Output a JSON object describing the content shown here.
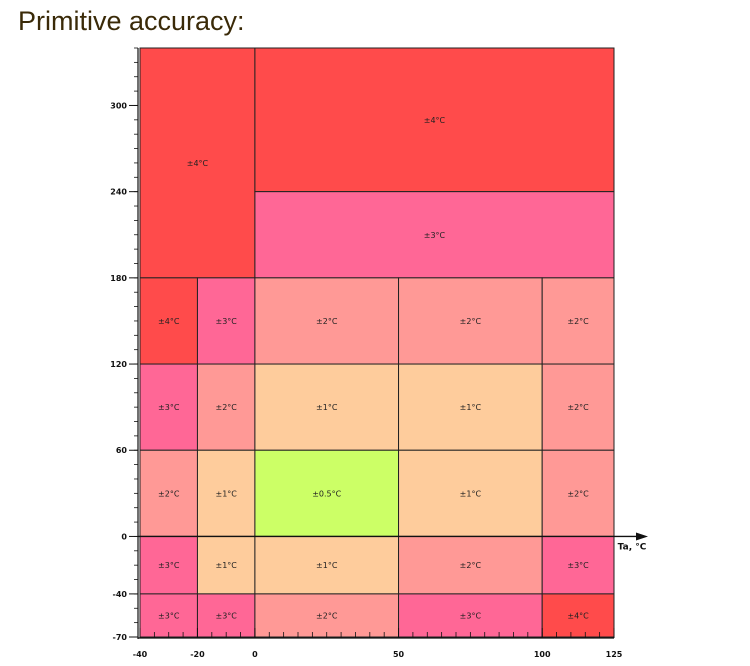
{
  "title": "Primitive accuracy:",
  "colors": {
    "±4°C": "#ff4b4b",
    "±3°C": "#ff6796",
    "±2°C": "#ff9996",
    "±1°C": "#fecc9c",
    "±0.5°C": "#ccff66"
  },
  "chart_data": {
    "type": "heatmap",
    "title": "Primitive accuracy:",
    "xlabel": "Ta, °C",
    "ylabel": "",
    "xlim": [
      -40,
      125
    ],
    "ylim": [
      -70,
      340
    ],
    "xticks": [
      -40,
      -20,
      0,
      50,
      100,
      125
    ],
    "yticks": [
      -70,
      -40,
      0,
      60,
      120,
      180,
      240,
      300
    ],
    "regions": [
      {
        "x": [
          -40,
          0
        ],
        "y": [
          180,
          340
        ],
        "label": "±4°C"
      },
      {
        "x": [
          0,
          125
        ],
        "y": [
          240,
          340
        ],
        "label": "±4°C"
      },
      {
        "x": [
          0,
          125
        ],
        "y": [
          180,
          240
        ],
        "label": "±3°C"
      },
      {
        "x": [
          -40,
          -20
        ],
        "y": [
          120,
          180
        ],
        "label": "±4°C"
      },
      {
        "x": [
          -20,
          0
        ],
        "y": [
          120,
          180
        ],
        "label": "±3°C"
      },
      {
        "x": [
          0,
          50
        ],
        "y": [
          120,
          180
        ],
        "label": "±2°C"
      },
      {
        "x": [
          50,
          100
        ],
        "y": [
          120,
          180
        ],
        "label": "±2°C"
      },
      {
        "x": [
          100,
          125
        ],
        "y": [
          120,
          180
        ],
        "label": "±2°C"
      },
      {
        "x": [
          -40,
          -20
        ],
        "y": [
          60,
          120
        ],
        "label": "±3°C"
      },
      {
        "x": [
          -20,
          0
        ],
        "y": [
          60,
          120
        ],
        "label": "±2°C"
      },
      {
        "x": [
          0,
          50
        ],
        "y": [
          60,
          120
        ],
        "label": "±1°C"
      },
      {
        "x": [
          50,
          100
        ],
        "y": [
          60,
          120
        ],
        "label": "±1°C"
      },
      {
        "x": [
          100,
          125
        ],
        "y": [
          60,
          120
        ],
        "label": "±2°C"
      },
      {
        "x": [
          -40,
          -20
        ],
        "y": [
          0,
          60
        ],
        "label": "±2°C"
      },
      {
        "x": [
          -20,
          0
        ],
        "y": [
          0,
          60
        ],
        "label": "±1°C"
      },
      {
        "x": [
          0,
          50
        ],
        "y": [
          0,
          60
        ],
        "label": "±0.5°C"
      },
      {
        "x": [
          50,
          100
        ],
        "y": [
          0,
          60
        ],
        "label": "±1°C"
      },
      {
        "x": [
          100,
          125
        ],
        "y": [
          0,
          60
        ],
        "label": "±2°C"
      },
      {
        "x": [
          -40,
          -20
        ],
        "y": [
          -40,
          0
        ],
        "label": "±3°C"
      },
      {
        "x": [
          -20,
          0
        ],
        "y": [
          -40,
          0
        ],
        "label": "±1°C"
      },
      {
        "x": [
          0,
          50
        ],
        "y": [
          -40,
          0
        ],
        "label": "±1°C"
      },
      {
        "x": [
          50,
          100
        ],
        "y": [
          -40,
          0
        ],
        "label": "±2°C"
      },
      {
        "x": [
          100,
          125
        ],
        "y": [
          -40,
          0
        ],
        "label": "±3°C"
      },
      {
        "x": [
          -40,
          -20
        ],
        "y": [
          -70,
          -40
        ],
        "label": "±3°C"
      },
      {
        "x": [
          -20,
          0
        ],
        "y": [
          -70,
          -40
        ],
        "label": "±3°C"
      },
      {
        "x": [
          0,
          50
        ],
        "y": [
          -70,
          -40
        ],
        "label": "±2°C"
      },
      {
        "x": [
          50,
          100
        ],
        "y": [
          -70,
          -40
        ],
        "label": "±3°C"
      },
      {
        "x": [
          100,
          125
        ],
        "y": [
          -70,
          -40
        ],
        "label": "±4°C"
      }
    ]
  }
}
